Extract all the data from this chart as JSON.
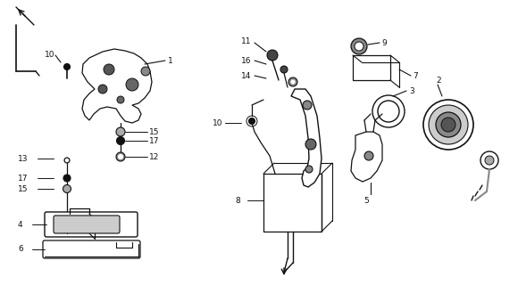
{
  "bg_color": "#ffffff",
  "line_color": "#111111",
  "fig_width": 5.8,
  "fig_height": 3.2,
  "dpi": 100
}
